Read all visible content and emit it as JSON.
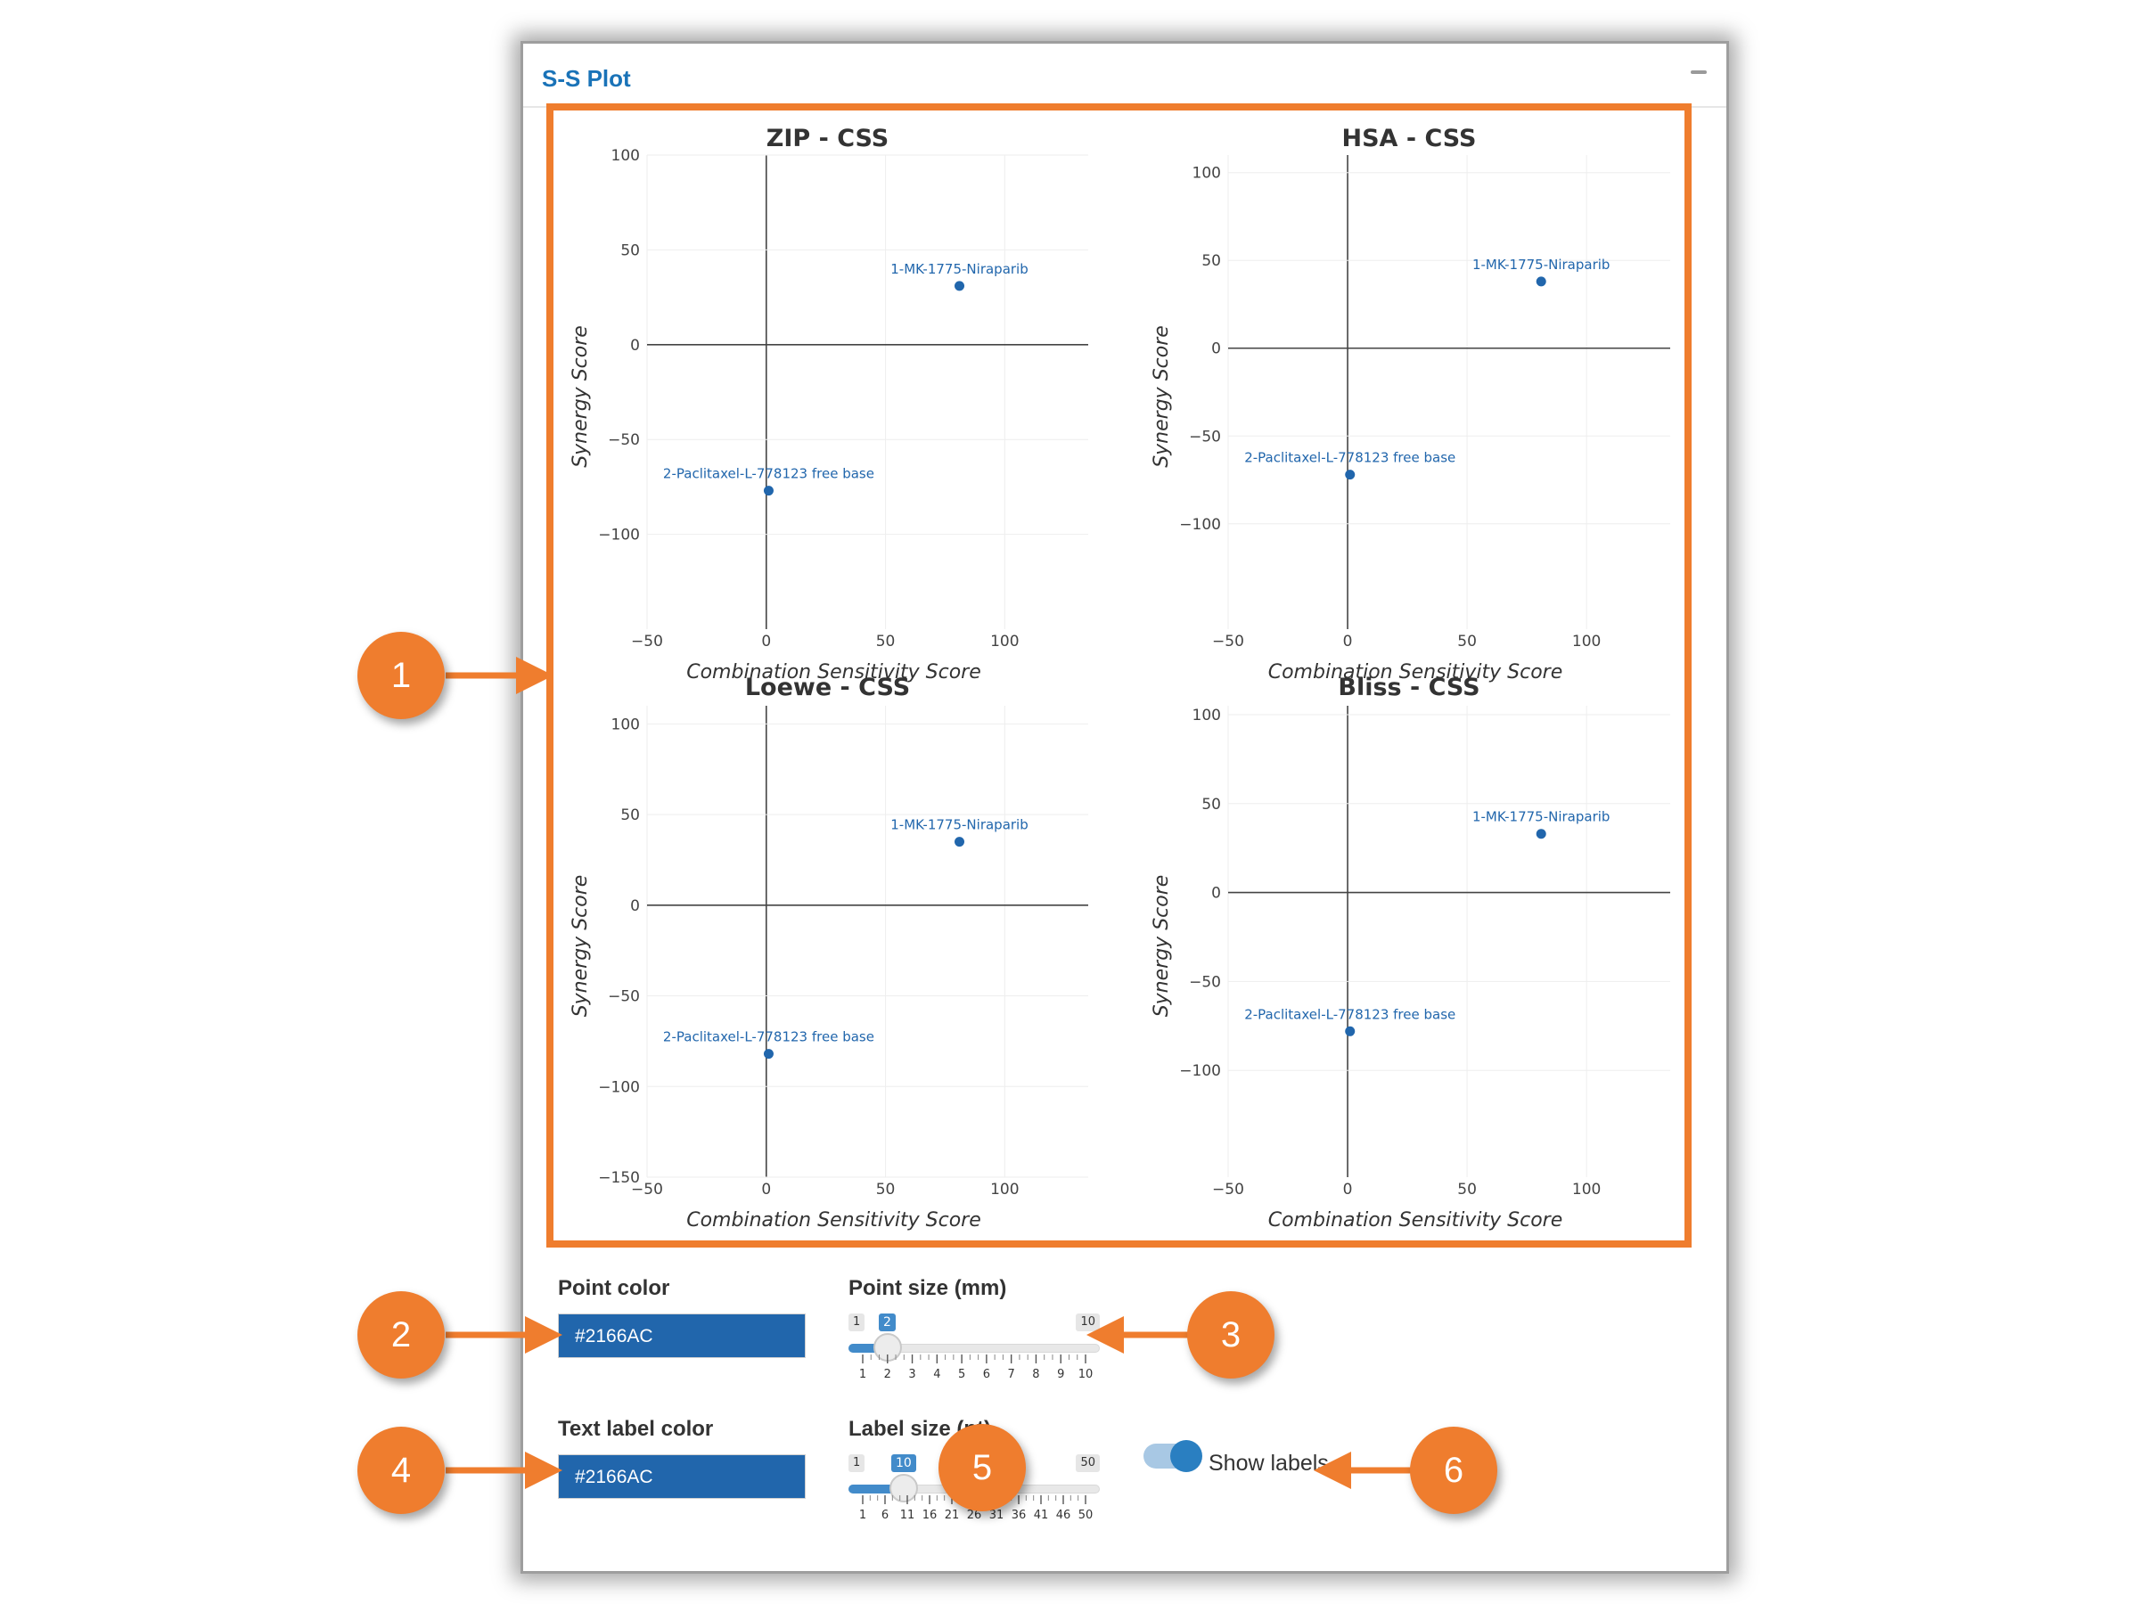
{
  "panel": {
    "title": "S-S Plot"
  },
  "point_color": {
    "label": "Point color",
    "value": "#2166AC"
  },
  "point_size": {
    "label": "Point size (mm)",
    "min": "1",
    "max": "10",
    "value": "2",
    "ticks": [
      "1",
      "2",
      "3",
      "4",
      "5",
      "6",
      "7",
      "8",
      "9",
      "10"
    ]
  },
  "text_label_color": {
    "label": "Text label color",
    "value": "#2166AC"
  },
  "label_size": {
    "label": "Label size (pt)",
    "min": "1",
    "max": "50",
    "value": "10",
    "ticks": [
      "1",
      "6",
      "11",
      "16",
      "21",
      "26",
      "31",
      "36",
      "41",
      "46",
      "50"
    ]
  },
  "show_labels": {
    "label": "Show labels",
    "on": true
  },
  "callouts": [
    "1",
    "2",
    "3",
    "4",
    "5",
    "6"
  ],
  "colors": {
    "accent": "#ef7d2e",
    "point": "#2166AC",
    "title_blue": "#1a73b8"
  },
  "chart_data": [
    {
      "type": "scatter",
      "title": "ZIP - CSS",
      "xlabel": "Combination Sensitivity Score",
      "ylabel": "Synergy Score",
      "xlim": [
        -50,
        135
      ],
      "ylim": [
        -150,
        100
      ],
      "xticks": [
        "−50",
        "0",
        "50",
        "100"
      ],
      "yticks": [
        "100",
        "50",
        "0",
        "−50",
        "−100"
      ],
      "points": [
        {
          "x": 81,
          "y": 31,
          "label": "1-MK-1775-Niraparib"
        },
        {
          "x": 1,
          "y": -77,
          "label": "2-Paclitaxel-L-778123 free base"
        }
      ]
    },
    {
      "type": "scatter",
      "title": "HSA - CSS",
      "xlabel": "Combination Sensitivity Score",
      "ylabel": "Synergy Score",
      "xlim": [
        -50,
        135
      ],
      "ylim": [
        -160,
        110
      ],
      "xticks": [
        "−50",
        "0",
        "50",
        "100"
      ],
      "yticks": [
        "100",
        "50",
        "0",
        "−50",
        "−100"
      ],
      "points": [
        {
          "x": 81,
          "y": 38,
          "label": "1-MK-1775-Niraparib"
        },
        {
          "x": 1,
          "y": -72,
          "label": "2-Paclitaxel-L-778123 free base"
        }
      ]
    },
    {
      "type": "scatter",
      "title": "Loewe - CSS",
      "xlabel": "Combination Sensitivity Score",
      "ylabel": "Synergy Score",
      "xlim": [
        -50,
        135
      ],
      "ylim": [
        -150,
        110
      ],
      "xticks": [
        "−50",
        "0",
        "50",
        "100"
      ],
      "yticks": [
        "100",
        "50",
        "0",
        "−50",
        "−100",
        "−150"
      ],
      "points": [
        {
          "x": 81,
          "y": 35,
          "label": "1-MK-1775-Niraparib"
        },
        {
          "x": 1,
          "y": -82,
          "label": "2-Paclitaxel-L-778123 free base"
        }
      ]
    },
    {
      "type": "scatter",
      "title": "Bliss - CSS",
      "xlabel": "Combination Sensitivity Score",
      "ylabel": "Synergy Score",
      "xlim": [
        -50,
        135
      ],
      "ylim": [
        -160,
        105
      ],
      "xticks": [
        "−50",
        "0",
        "50",
        "100"
      ],
      "yticks": [
        "100",
        "50",
        "0",
        "−50",
        "−100"
      ],
      "points": [
        {
          "x": 81,
          "y": 33,
          "label": "1-MK-1775-Niraparib"
        },
        {
          "x": 1,
          "y": -78,
          "label": "2-Paclitaxel-L-778123 free base"
        }
      ]
    }
  ]
}
